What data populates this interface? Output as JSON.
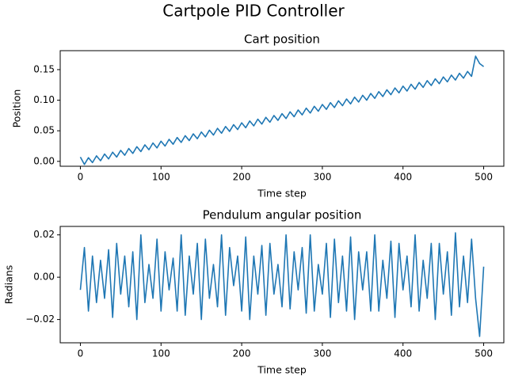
{
  "title": "Cartpole PID Controller",
  "chart_data": [
    {
      "type": "line",
      "title": "Cart position",
      "xlabel": "Time step",
      "ylabel": "Position",
      "color": "#1f77b4",
      "x": [
        0,
        5,
        10,
        15,
        20,
        25,
        30,
        35,
        40,
        45,
        50,
        55,
        60,
        65,
        70,
        75,
        80,
        85,
        90,
        95,
        100,
        105,
        110,
        115,
        120,
        125,
        130,
        135,
        140,
        145,
        150,
        155,
        160,
        165,
        170,
        175,
        180,
        185,
        190,
        195,
        200,
        205,
        210,
        215,
        220,
        225,
        230,
        235,
        240,
        245,
        250,
        255,
        260,
        265,
        270,
        275,
        280,
        285,
        290,
        295,
        300,
        305,
        310,
        315,
        320,
        325,
        330,
        335,
        340,
        345,
        350,
        355,
        360,
        365,
        370,
        375,
        380,
        385,
        390,
        395,
        400,
        405,
        410,
        415,
        420,
        425,
        430,
        435,
        440,
        445,
        450,
        455,
        460,
        465,
        470,
        475,
        480,
        485,
        490,
        495,
        500
      ],
      "values": [
        0.007,
        -0.005,
        0.006,
        -0.002,
        0.009,
        0.001,
        0.012,
        0.004,
        0.015,
        0.007,
        0.018,
        0.01,
        0.021,
        0.013,
        0.024,
        0.016,
        0.027,
        0.019,
        0.03,
        0.022,
        0.033,
        0.025,
        0.036,
        0.028,
        0.039,
        0.031,
        0.042,
        0.034,
        0.045,
        0.037,
        0.048,
        0.04,
        0.051,
        0.043,
        0.054,
        0.046,
        0.057,
        0.049,
        0.06,
        0.052,
        0.063,
        0.055,
        0.066,
        0.058,
        0.069,
        0.061,
        0.072,
        0.064,
        0.075,
        0.067,
        0.078,
        0.07,
        0.081,
        0.073,
        0.084,
        0.076,
        0.087,
        0.079,
        0.09,
        0.082,
        0.093,
        0.085,
        0.096,
        0.088,
        0.099,
        0.091,
        0.102,
        0.094,
        0.105,
        0.097,
        0.108,
        0.1,
        0.111,
        0.103,
        0.114,
        0.106,
        0.117,
        0.109,
        0.12,
        0.112,
        0.123,
        0.115,
        0.126,
        0.118,
        0.129,
        0.121,
        0.132,
        0.124,
        0.135,
        0.127,
        0.138,
        0.13,
        0.141,
        0.133,
        0.144,
        0.136,
        0.147,
        0.139,
        0.172,
        0.16,
        0.155
      ],
      "xlim": [
        -25,
        525
      ],
      "xticks": [
        0,
        100,
        200,
        300,
        400,
        500
      ],
      "ylim": [
        -0.008,
        0.181
      ],
      "yticks": [
        {
          "value": 0,
          "label": "0.00"
        },
        {
          "value": 0.05,
          "label": "0.05"
        },
        {
          "value": 0.1,
          "label": "0.10"
        },
        {
          "value": 0.15,
          "label": "0.15"
        }
      ]
    },
    {
      "type": "line",
      "title": "Pendulum angular position",
      "xlabel": "Time step",
      "ylabel": "Radians",
      "color": "#1f77b4",
      "x": [
        0,
        5,
        10,
        15,
        20,
        25,
        30,
        35,
        40,
        45,
        50,
        55,
        60,
        65,
        70,
        75,
        80,
        85,
        90,
        95,
        100,
        105,
        110,
        115,
        120,
        125,
        130,
        135,
        140,
        145,
        150,
        155,
        160,
        165,
        170,
        175,
        180,
        185,
        190,
        195,
        200,
        205,
        210,
        215,
        220,
        225,
        230,
        235,
        240,
        245,
        250,
        255,
        260,
        265,
        270,
        275,
        280,
        285,
        290,
        295,
        300,
        305,
        310,
        315,
        320,
        325,
        330,
        335,
        340,
        345,
        350,
        355,
        360,
        365,
        370,
        375,
        380,
        385,
        390,
        395,
        400,
        405,
        410,
        415,
        420,
        425,
        430,
        435,
        440,
        445,
        450,
        455,
        460,
        465,
        470,
        475,
        480,
        485,
        490,
        495,
        500
      ],
      "values": [
        -0.006,
        0.014,
        -0.016,
        0.01,
        -0.012,
        0.008,
        -0.01,
        0.013,
        -0.019,
        0.016,
        -0.008,
        0.01,
        -0.014,
        0.012,
        -0.02,
        0.02,
        -0.012,
        0.006,
        -0.01,
        0.018,
        -0.016,
        0.012,
        -0.006,
        0.009,
        -0.016,
        0.02,
        -0.018,
        0.01,
        -0.008,
        0.016,
        -0.02,
        0.018,
        -0.01,
        0.006,
        -0.014,
        0.02,
        -0.018,
        0.014,
        -0.004,
        0.01,
        -0.016,
        0.019,
        -0.02,
        0.01,
        -0.008,
        0.015,
        -0.018,
        0.016,
        -0.008,
        0.006,
        -0.014,
        0.02,
        -0.015,
        0.012,
        -0.006,
        0.014,
        -0.017,
        0.02,
        -0.016,
        0.006,
        -0.008,
        0.016,
        -0.019,
        0.018,
        -0.012,
        0.01,
        -0.016,
        0.019,
        -0.02,
        0.012,
        -0.006,
        0.012,
        -0.016,
        0.02,
        -0.016,
        0.008,
        -0.01,
        0.017,
        -0.019,
        0.016,
        -0.006,
        0.01,
        -0.014,
        0.02,
        -0.016,
        0.008,
        -0.01,
        0.016,
        -0.02,
        0.016,
        -0.008,
        0.012,
        -0.018,
        0.021,
        -0.014,
        0.01,
        -0.012,
        0.018,
        -0.01,
        -0.028,
        0.005
      ],
      "xlim": [
        -25,
        525
      ],
      "xticks": [
        0,
        100,
        200,
        300,
        400,
        500
      ],
      "ylim": [
        -0.031,
        0.024
      ],
      "yticks": [
        {
          "value": -0.02,
          "label": "−0.02"
        },
        {
          "value": 0,
          "label": "0.00"
        },
        {
          "value": 0.02,
          "label": "0.02"
        }
      ]
    }
  ]
}
